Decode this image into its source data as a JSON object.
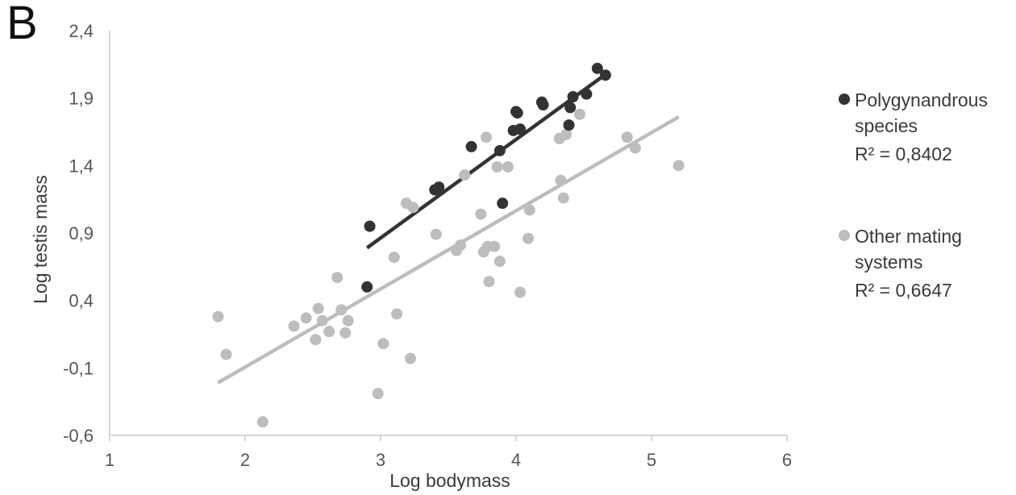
{
  "panel_label": "B",
  "legend": {
    "items": [
      {
        "line1": "Polygynandrous",
        "line2": "species",
        "r2_text": "R² = 0,8402",
        "color": "#333333"
      },
      {
        "line1": "Other mating",
        "line2": "systems",
        "r2_text": "R² = 0,6647",
        "color": "#bdbdbd"
      }
    ]
  },
  "chart_data": {
    "type": "scatter",
    "xlabel": "Log bodymass",
    "ylabel": "Log testis mass",
    "xlim": [
      1,
      6
    ],
    "ylim": [
      -0.6,
      2.4
    ],
    "x_ticks": [
      "1",
      "2",
      "3",
      "4",
      "5",
      "6"
    ],
    "y_ticks": [
      "-0,6",
      "-0,1",
      "0,4",
      "0,9",
      "1,4",
      "1,9",
      "2,4"
    ],
    "series": [
      {
        "name": "Polygynandrous species",
        "color": "#333333",
        "points": [
          [
            2.9,
            0.5
          ],
          [
            2.92,
            0.95
          ],
          [
            3.4,
            1.22
          ],
          [
            3.43,
            1.24
          ],
          [
            3.67,
            1.54
          ],
          [
            3.88,
            1.51
          ],
          [
            3.9,
            1.12
          ],
          [
            3.98,
            1.66
          ],
          [
            4.0,
            1.8
          ],
          [
            4.01,
            1.79
          ],
          [
            4.03,
            1.67
          ],
          [
            4.19,
            1.87
          ],
          [
            4.2,
            1.85
          ],
          [
            4.39,
            1.7
          ],
          [
            4.4,
            1.83
          ],
          [
            4.42,
            1.91
          ],
          [
            4.52,
            1.93
          ],
          [
            4.6,
            2.12
          ],
          [
            4.66,
            2.07
          ]
        ],
        "trendline": {
          "x": [
            2.9,
            4.68
          ],
          "y": [
            0.79,
            2.09
          ],
          "r2": 0.8402
        }
      },
      {
        "name": "Other mating systems",
        "color": "#bdbdbd",
        "points": [
          [
            1.8,
            0.28
          ],
          [
            1.86,
            0.0
          ],
          [
            2.13,
            -0.5
          ],
          [
            2.36,
            0.21
          ],
          [
            2.45,
            0.27
          ],
          [
            2.52,
            0.11
          ],
          [
            2.54,
            0.34
          ],
          [
            2.57,
            0.25
          ],
          [
            2.62,
            0.17
          ],
          [
            2.68,
            0.57
          ],
          [
            2.71,
            0.33
          ],
          [
            2.74,
            0.16
          ],
          [
            2.76,
            0.25
          ],
          [
            2.98,
            -0.29
          ],
          [
            3.02,
            0.08
          ],
          [
            3.1,
            0.72
          ],
          [
            3.12,
            0.3
          ],
          [
            3.19,
            1.12
          ],
          [
            3.22,
            -0.03
          ],
          [
            3.24,
            1.09
          ],
          [
            3.41,
            0.89
          ],
          [
            3.56,
            0.77
          ],
          [
            3.59,
            0.81
          ],
          [
            3.62,
            1.33
          ],
          [
            3.74,
            1.04
          ],
          [
            3.76,
            0.76
          ],
          [
            3.78,
            1.61
          ],
          [
            3.79,
            0.8
          ],
          [
            3.8,
            0.54
          ],
          [
            3.84,
            0.8
          ],
          [
            3.86,
            1.39
          ],
          [
            3.88,
            0.69
          ],
          [
            3.94,
            1.39
          ],
          [
            4.03,
            0.46
          ],
          [
            4.09,
            0.86
          ],
          [
            4.1,
            1.07
          ],
          [
            4.32,
            1.6
          ],
          [
            4.33,
            1.29
          ],
          [
            4.35,
            1.16
          ],
          [
            4.37,
            1.63
          ],
          [
            4.47,
            1.78
          ],
          [
            4.82,
            1.61
          ],
          [
            4.88,
            1.53
          ],
          [
            5.2,
            1.4
          ]
        ],
        "trendline": {
          "x": [
            1.8,
            5.2
          ],
          "y": [
            -0.21,
            1.76
          ],
          "r2": 0.6647
        }
      }
    ],
    "grid": false,
    "legend_position": "right"
  }
}
